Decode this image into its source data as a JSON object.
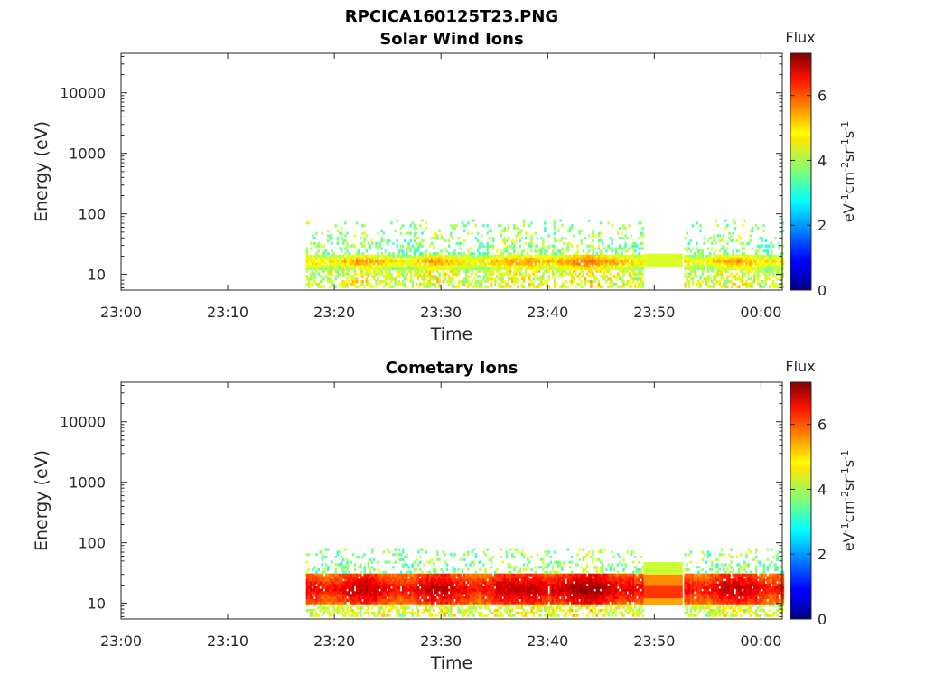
{
  "figure_title": "RPCICA160125T23.PNG",
  "colorbar_label_html": "eV<tspan dy='-6' font-size='11'>-1</tspan><tspan dy='6'>cm</tspan><tspan dy='-6' font-size='11'>-2</tspan><tspan dy='6'>sr</tspan><tspan dy='-6' font-size='11'>-1</tspan><tspan dy='6'>s</tspan><tspan dy='-6' font-size='11'>-1</tspan>",
  "chart_data": [
    {
      "type": "heatmap",
      "title": "Solar Wind Ions",
      "xlabel": "Time",
      "ylabel": "Energy (eV)",
      "yscale": "log",
      "ylim": [
        5.5,
        45000
      ],
      "xlim": [
        "23:00",
        "00:02"
      ],
      "xticks": [
        "23:00",
        "23:10",
        "23:20",
        "23:30",
        "23:40",
        "23:50",
        "00:00"
      ],
      "yticks": [
        "10",
        "100",
        "1000",
        "10000"
      ],
      "colorbar": {
        "title": "Flux",
        "ticks": [
          "0",
          "2",
          "4",
          "6"
        ],
        "range": [
          0,
          7.3
        ],
        "colormap": "jet"
      },
      "data_start": "23:17:20",
      "data_end": "00:02:00",
      "gap": [
        "23:49",
        "23:52:40"
      ],
      "band": {
        "core_energy": [
          12,
          22
        ],
        "sparse_energy": [
          6,
          80
        ],
        "peak_flux": 5.0,
        "typical_flux": 4.0
      }
    },
    {
      "type": "heatmap",
      "title": "Cometary Ions",
      "xlabel": "Time",
      "ylabel": "Energy (eV)",
      "yscale": "log",
      "ylim": [
        5.5,
        45000
      ],
      "xlim": [
        "23:00",
        "00:02"
      ],
      "xticks": [
        "23:00",
        "23:10",
        "23:20",
        "23:30",
        "23:40",
        "23:50",
        "00:00"
      ],
      "yticks": [
        "10",
        "100",
        "1000",
        "10000"
      ],
      "colorbar": {
        "title": "Flux",
        "ticks": [
          "0",
          "2",
          "4",
          "6"
        ],
        "range": [
          0,
          7.3
        ],
        "colormap": "jet"
      },
      "data_start": "23:17:20",
      "data_end": "00:02:00",
      "gap": [
        "23:49",
        "23:52:40"
      ],
      "band": {
        "core_energy": [
          10,
          30
        ],
        "sparse_energy": [
          6,
          80
        ],
        "peak_flux": 6.6,
        "typical_flux": 5.8
      }
    }
  ]
}
